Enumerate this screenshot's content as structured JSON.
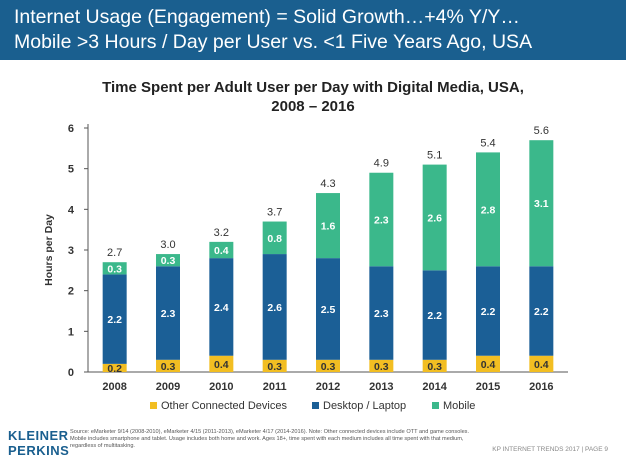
{
  "banner": {
    "line1": "Internet Usage (Engagement) = Solid Growth…+4% Y/Y…",
    "line2": "Mobile >3 Hours / Day per User vs. <1 Five Years Ago, USA"
  },
  "footer": {
    "logo_line1": "KLEINER",
    "logo_line2": "PERKINS",
    "source": "Source: eMarketer 9/14 (2008-2010), eMarketer 4/15 (2011-2013), eMarketer 4/17 (2014-2016). Note: Other connected devices include OTT and game consoles. Mobile includes smartphone and tablet. Usage includes both home and work. Ages 18+, time spent with each medium includes all time spent with that medium, regardless of multitasking.",
    "right": "KP INTERNET TRENDS 2017  |  PAGE 9"
  },
  "chart_data": {
    "type": "bar",
    "stacked": true,
    "title_line1": "Time Spent per Adult User per Day with Digital Media, USA,",
    "title_line2": "2008 – 2016",
    "xlabel": "",
    "ylabel": "Hours per Day",
    "ylim": [
      0,
      6
    ],
    "yticks": [
      0,
      1,
      2,
      3,
      4,
      5,
      6
    ],
    "grid": false,
    "legend_position": "bottom",
    "categories": [
      "2008",
      "2009",
      "2010",
      "2011",
      "2012",
      "2013",
      "2014",
      "2015",
      "2016"
    ],
    "totals": [
      "2.7",
      "3.0",
      "3.2",
      "3.7",
      "4.3",
      "4.9",
      "5.1",
      "5.4",
      "5.6"
    ],
    "series": [
      {
        "name": "Other Connected Devices",
        "color": "#f2be22",
        "label_color": "#333333",
        "values": [
          0.2,
          0.3,
          0.4,
          0.3,
          0.3,
          0.3,
          0.3,
          0.4,
          0.4
        ],
        "labels": [
          "0.2",
          "0.3",
          "0.4",
          "0.3",
          "0.3",
          "0.3",
          "0.3",
          "0.4",
          "0.4"
        ]
      },
      {
        "name": "Desktop / Laptop",
        "color": "#1b5f96",
        "label_color": "#ffffff",
        "values": [
          2.2,
          2.3,
          2.4,
          2.6,
          2.5,
          2.3,
          2.2,
          2.2,
          2.2
        ],
        "labels": [
          "2.2",
          "2.3",
          "2.4",
          "2.6",
          "2.5",
          "2.3",
          "2.2",
          "2.2",
          "2.2"
        ]
      },
      {
        "name": "Mobile",
        "color": "#3bb88b",
        "label_color": "#ffffff",
        "values": [
          0.3,
          0.3,
          0.4,
          0.8,
          1.6,
          2.3,
          2.6,
          2.8,
          3.1
        ],
        "labels": [
          "0.3",
          "0.3",
          "0.4",
          "0.8",
          "1.6",
          "2.3",
          "2.6",
          "2.8",
          "3.1"
        ]
      }
    ]
  }
}
